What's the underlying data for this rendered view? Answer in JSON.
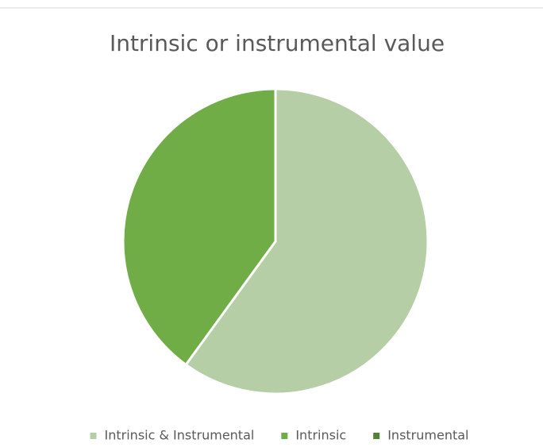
{
  "chart_data": {
    "type": "pie",
    "title": "Intrinsic or instrumental value",
    "categories": [
      "Intrinsic & Instrumental",
      "Intrinsic",
      "Instrumental"
    ],
    "values": [
      60,
      40,
      0
    ],
    "colors": [
      "#b5cea6",
      "#70ad47",
      "#548235"
    ],
    "legend": "bottom"
  }
}
